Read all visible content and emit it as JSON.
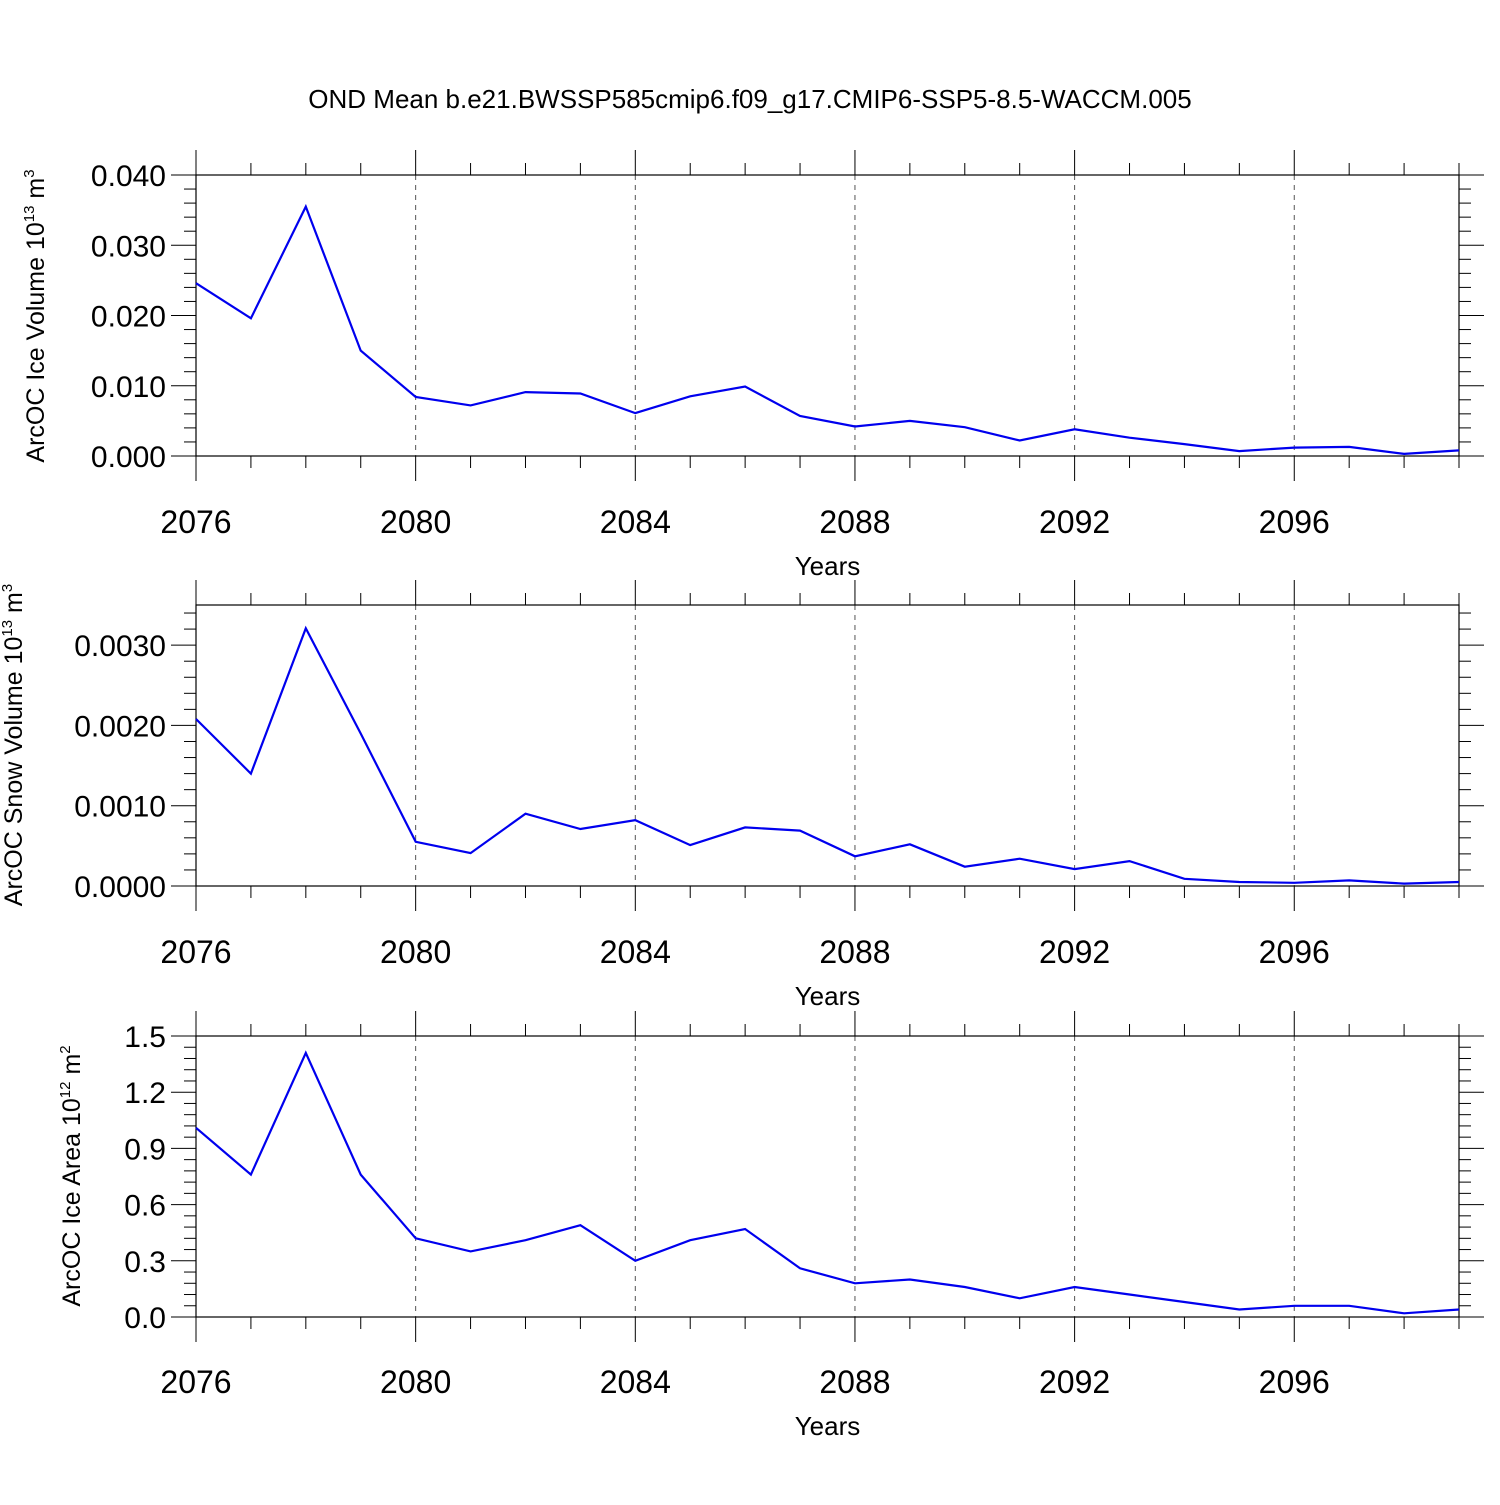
{
  "title": "OND Mean b.e21.BWSSP585cmip6.f09_g17.CMIP6-SSP5-8.5-WACCM.005",
  "chart_data": [
    {
      "type": "line",
      "xlabel": "Years",
      "ylabel": {
        "text": "ArcOC Ice Volume 10",
        "exp": "13",
        "unit": " m",
        "unit_exp": "3"
      },
      "xlim": [
        2076,
        2099
      ],
      "ylim": [
        0,
        0.04
      ],
      "yticks": [
        "0.000",
        "0.010",
        "0.020",
        "0.030",
        "0.040"
      ],
      "yticks_values": [
        0,
        0.01,
        0.02,
        0.03,
        0.04
      ],
      "xticks": [
        2076,
        2080,
        2084,
        2088,
        2092,
        2096
      ],
      "grid": "vertical-dashed",
      "color": "#0000ee",
      "x": [
        2076,
        2077,
        2078,
        2079,
        2080,
        2081,
        2082,
        2083,
        2084,
        2085,
        2086,
        2087,
        2088,
        2089,
        2090,
        2091,
        2092,
        2093,
        2094,
        2095,
        2096,
        2097,
        2098,
        2099
      ],
      "values": [
        0.0246,
        0.0196,
        0.0355,
        0.015,
        0.0084,
        0.0072,
        0.0091,
        0.0089,
        0.0061,
        0.0085,
        0.0099,
        0.0057,
        0.0042,
        0.005,
        0.0041,
        0.0022,
        0.0038,
        0.0026,
        0.0017,
        0.0007,
        0.0012,
        0.0013,
        0.0003,
        0.0008
      ]
    },
    {
      "type": "line",
      "xlabel": "Years",
      "ylabel": {
        "text": "ArcOC Snow Volume 10",
        "exp": "13",
        "unit": " m",
        "unit_exp": "3"
      },
      "xlim": [
        2076,
        2099
      ],
      "ylim": [
        0,
        0.0035
      ],
      "yticks": [
        "0.0000",
        "0.0010",
        "0.0020",
        "0.0030"
      ],
      "yticks_values": [
        0,
        0.001,
        0.002,
        0.003
      ],
      "xticks": [
        2076,
        2080,
        2084,
        2088,
        2092,
        2096
      ],
      "grid": "vertical-dashed",
      "color": "#0000ee",
      "x": [
        2076,
        2077,
        2078,
        2079,
        2080,
        2081,
        2082,
        2083,
        2084,
        2085,
        2086,
        2087,
        2088,
        2089,
        2090,
        2091,
        2092,
        2093,
        2094,
        2095,
        2096,
        2097,
        2098,
        2099
      ],
      "values": [
        0.00208,
        0.0014,
        0.00321,
        0.0019,
        0.00055,
        0.00041,
        0.0009,
        0.00071,
        0.00082,
        0.00051,
        0.00073,
        0.00069,
        0.00037,
        0.00052,
        0.00024,
        0.00034,
        0.00021,
        0.00031,
        9e-05,
        5e-05,
        4e-05,
        7e-05,
        3e-05,
        5e-05
      ]
    },
    {
      "type": "line",
      "xlabel": "Years",
      "ylabel": {
        "text": "ArcOC Ice Area 10",
        "exp": "12",
        "unit": " m",
        "unit_exp": "2"
      },
      "xlim": [
        2076,
        2099
      ],
      "ylim": [
        0,
        1.5
      ],
      "yticks": [
        "0.0",
        "0.3",
        "0.6",
        "0.9",
        "1.2",
        "1.5"
      ],
      "yticks_values": [
        0,
        0.3,
        0.6,
        0.9,
        1.2,
        1.5
      ],
      "xticks": [
        2076,
        2080,
        2084,
        2088,
        2092,
        2096
      ],
      "grid": "vertical-dashed",
      "color": "#0000ee",
      "x": [
        2076,
        2077,
        2078,
        2079,
        2080,
        2081,
        2082,
        2083,
        2084,
        2085,
        2086,
        2087,
        2088,
        2089,
        2090,
        2091,
        2092,
        2093,
        2094,
        2095,
        2096,
        2097,
        2098,
        2099
      ],
      "values": [
        1.01,
        0.76,
        1.41,
        0.76,
        0.42,
        0.35,
        0.41,
        0.49,
        0.3,
        0.41,
        0.47,
        0.26,
        0.18,
        0.2,
        0.16,
        0.1,
        0.16,
        0.12,
        0.08,
        0.04,
        0.06,
        0.06,
        0.02,
        0.04
      ]
    }
  ]
}
